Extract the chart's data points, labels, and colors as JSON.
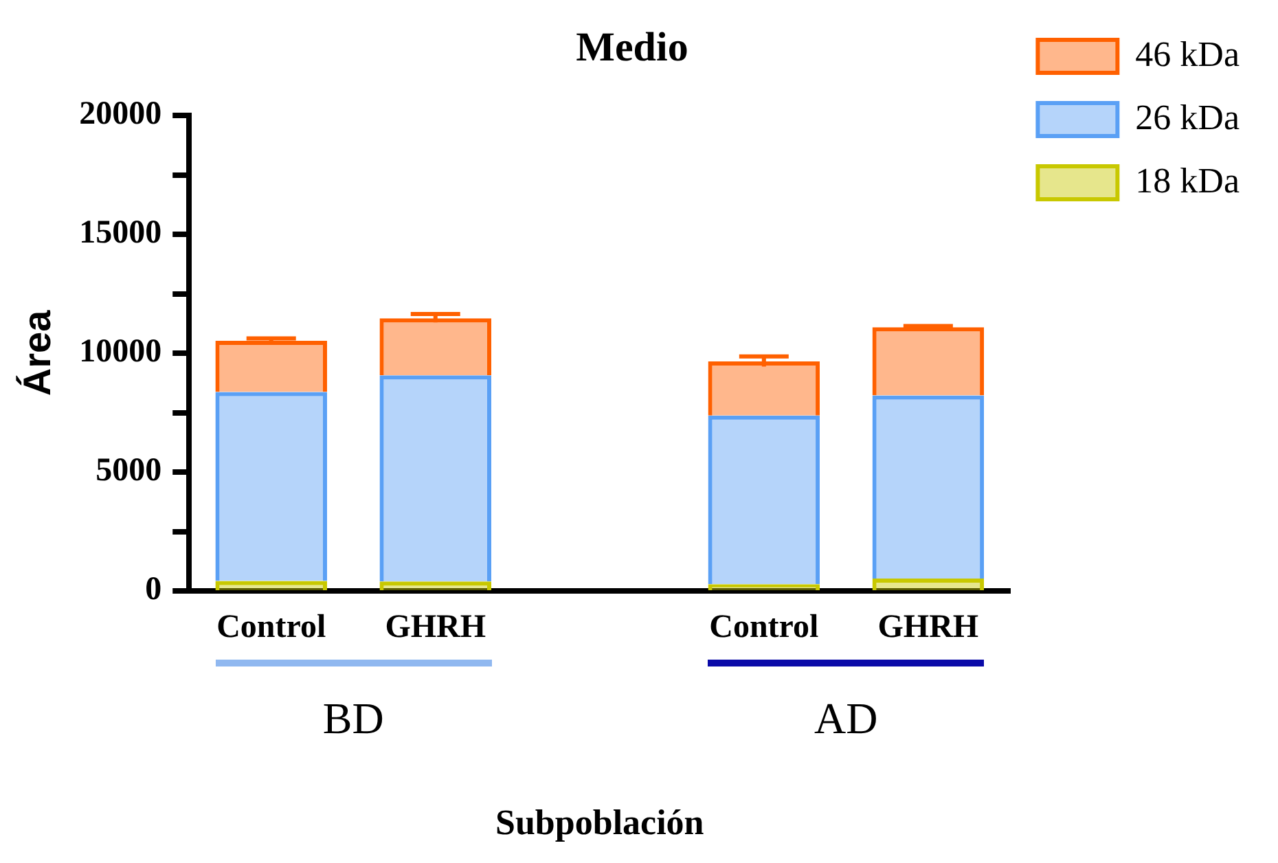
{
  "chart_data": {
    "type": "bar",
    "title": "Medio",
    "xlabel": "Subpoblación",
    "ylabel": "Área",
    "categories": [
      "Control",
      "GHRH",
      null,
      "Control",
      "GHRH"
    ],
    "stacked": true,
    "series": [
      {
        "name": "18 kDa",
        "color": "#c8c800",
        "values": [
          420,
          400,
          null,
          280,
          520
        ]
      },
      {
        "name": "26 kDa",
        "color": "#5aa0f5",
        "values": [
          7950,
          8670,
          null,
          7100,
          7700
        ]
      },
      {
        "name": "46 kDa",
        "color": "#ff6000",
        "values": [
          2150,
          2400,
          null,
          2270,
          2870
        ],
        "errors": [
          100,
          180,
          null,
          210,
          50
        ]
      }
    ],
    "ylim": [
      0,
      20000
    ],
    "yticks": [
      0,
      {
        "value": 2500,
        "label": null
      },
      5000,
      {
        "value": 7500,
        "label": null
      },
      10000,
      {
        "value": 12500,
        "label": null
      },
      15000,
      {
        "value": 17500,
        "label": null
      },
      20000
    ],
    "grid": false,
    "legend": "top right",
    "annotations": [
      "BD",
      "AD"
    ]
  }
}
